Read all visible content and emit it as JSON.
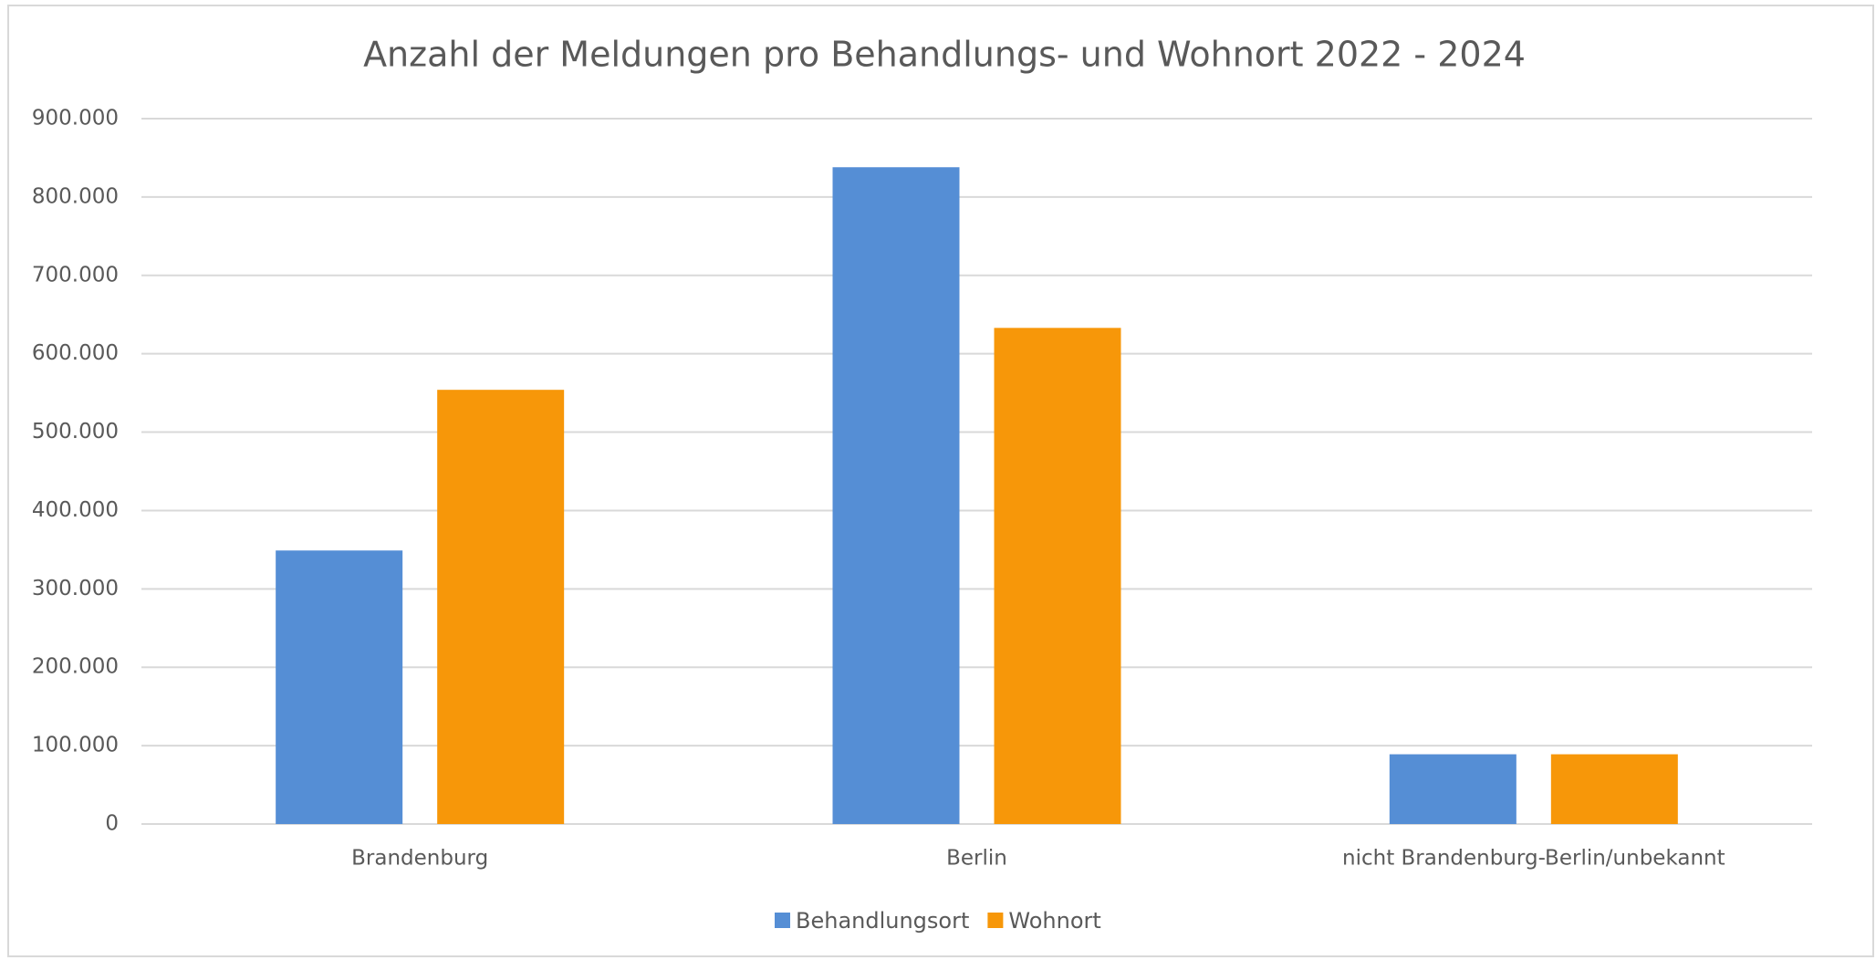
{
  "chart_data": {
    "type": "bar",
    "title": "Anzahl der Meldungen pro Behandlungs- und Wohnort 2022 - 2024",
    "categories": [
      "Brandenburg",
      "Berlin",
      "nicht Brandenburg-Berlin/unbekannt"
    ],
    "series": [
      {
        "name": "Behandlungsort",
        "color": "#558ed5",
        "values": [
          349000,
          838000,
          89000
        ]
      },
      {
        "name": "Wohnort",
        "color": "#f79709",
        "values": [
          554000,
          633000,
          89000
        ]
      }
    ],
    "ylim": [
      0,
      900000
    ],
    "yticks": [
      0,
      {
        "value": 100000,
        "label": "100.000"
      },
      {
        "value": 200000,
        "label": "200.000"
      },
      {
        "value": 300000,
        "label": "300.000"
      },
      {
        "value": 400000,
        "label": "400.000"
      },
      {
        "value": 500000,
        "label": "500.000"
      },
      {
        "value": 600000,
        "label": "600.000"
      },
      {
        "value": 700000,
        "label": "700.000"
      },
      {
        "value": 800000,
        "label": "800.000"
      },
      {
        "value": 900000,
        "label": "900.000"
      }
    ],
    "grid": true,
    "legend": "bottom"
  }
}
